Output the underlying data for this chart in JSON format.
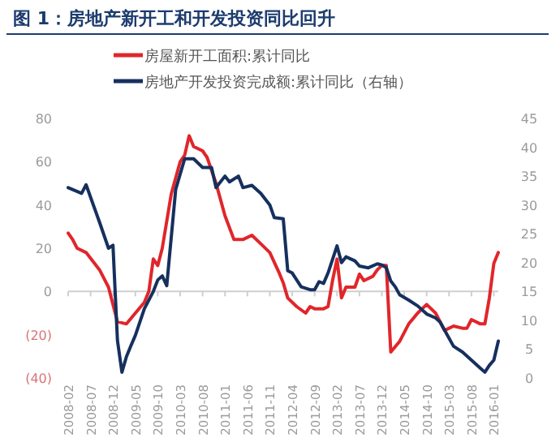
{
  "chart_data": {
    "type": "line",
    "title": "图 1：房地产新开工和开发投资同比回升",
    "legend": "top",
    "xlim": [
      "2008-02",
      "2016-02"
    ],
    "xticks": [
      "2008-02",
      "2008-07",
      "2008-12",
      "2009-05",
      "2009-10",
      "2010-03",
      "2010-08",
      "2011-01",
      "2011-06",
      "2011-11",
      "2012-04",
      "2012-09",
      "2013-02",
      "2013-07",
      "2013-12",
      "2014-05",
      "2014-10",
      "2015-03",
      "2015-08",
      "2016-01"
    ],
    "ylim": [
      -40,
      80
    ],
    "yticks": [
      80,
      60,
      40,
      20,
      0,
      {
        "value": -20,
        "label": "(20)"
      },
      {
        "value": -40,
        "label": "(40)"
      }
    ],
    "y2lim": [
      0,
      45
    ],
    "y2ticks": [
      0,
      5,
      10,
      15,
      20,
      25,
      30,
      35,
      40,
      45
    ],
    "series": [
      {
        "name": "房屋新开工面积:累计同比",
        "color": "#e0262b",
        "x": [
          "2008-02",
          "2008-03",
          "2008-04",
          "2008-06",
          "2008-09",
          "2008-11",
          "2009-01",
          "2009-03",
          "2009-05",
          "2009-07",
          "2009-08",
          "2009-09",
          "2009-10",
          "2009-11",
          "2010-01",
          "2010-03",
          "2010-04",
          "2010-05",
          "2010-06",
          "2010-08",
          "2010-09",
          "2010-11",
          "2011-01",
          "2011-03",
          "2011-05",
          "2011-07",
          "2011-09",
          "2011-11",
          "2012-01",
          "2012-02",
          "2012-03",
          "2012-05",
          "2012-07",
          "2012-08",
          "2012-09",
          "2012-11",
          "2012-12",
          "2013-01",
          "2013-02",
          "2013-03",
          "2013-04",
          "2013-06",
          "2013-07",
          "2013-08",
          "2013-10",
          "2013-11",
          "2013-12",
          "2014-01",
          "2014-02",
          "2014-04",
          "2014-06",
          "2014-08",
          "2014-10",
          "2014-11",
          "2014-12",
          "2015-02",
          "2015-04",
          "2015-06",
          "2015-07",
          "2015-08",
          "2015-10",
          "2015-11",
          "2015-12",
          "2016-01",
          "2016-02"
        ],
        "values": [
          27,
          24,
          20,
          18,
          10,
          2,
          -14,
          -15,
          -10,
          -5,
          0,
          15,
          12,
          20,
          45,
          60,
          63,
          72,
          67,
          65,
          62,
          50,
          35,
          24,
          24,
          26,
          22,
          18,
          9,
          4,
          -3,
          -7,
          -10,
          -7,
          -8,
          -8,
          -7,
          5,
          15,
          -3,
          2,
          2,
          8,
          5,
          7,
          10,
          12,
          12,
          -28,
          -23,
          -15,
          -10,
          -6,
          -8,
          -10,
          -18,
          -16,
          -17,
          -17,
          -13,
          -15,
          -15,
          -3,
          13,
          18
        ]
      },
      {
        "name": "房地产开发投资完成额:累计同比（右轴）",
        "color": "#16305e",
        "axis": "y2",
        "x": [
          "2008-02",
          "2008-05",
          "2008-06",
          "2008-09",
          "2008-11",
          "2008-12",
          "2009-01",
          "2009-02",
          "2009-03",
          "2009-04",
          "2009-05",
          "2009-07",
          "2009-09",
          "2009-10",
          "2009-11",
          "2009-12",
          "2010-02",
          "2010-04",
          "2010-06",
          "2010-08",
          "2010-10",
          "2010-11",
          "2011-01",
          "2011-02",
          "2011-04",
          "2011-05",
          "2011-07",
          "2011-09",
          "2011-11",
          "2011-12",
          "2012-02",
          "2012-03",
          "2012-04",
          "2012-06",
          "2012-08",
          "2012-09",
          "2012-10",
          "2012-11",
          "2012-12",
          "2013-02",
          "2013-03",
          "2013-04",
          "2013-06",
          "2013-07",
          "2013-09",
          "2013-11",
          "2013-12",
          "2014-01",
          "2014-02",
          "2014-03",
          "2014-04",
          "2014-06",
          "2014-08",
          "2014-10",
          "2014-12",
          "2015-01",
          "2015-02",
          "2015-04",
          "2015-06",
          "2015-08",
          "2015-10",
          "2015-11",
          "2015-12",
          "2016-01",
          "2016-02"
        ],
        "values": [
          33,
          32,
          33.5,
          27,
          22.5,
          23,
          6.5,
          1,
          3.7,
          5.6,
          7.4,
          12,
          15,
          17,
          17.7,
          16,
          32.7,
          38,
          38,
          36.5,
          36.5,
          33,
          35,
          34,
          35,
          33,
          33.4,
          32,
          30,
          27.8,
          27.6,
          18.6,
          18.2,
          15.8,
          15.3,
          15.3,
          16.7,
          16.4,
          18.2,
          22.9,
          20,
          21,
          20.3,
          19.4,
          19.1,
          19.8,
          19.6,
          19.1,
          16.8,
          15.8,
          14.4,
          13.5,
          12.5,
          11.1,
          10.4,
          9.7,
          8.3,
          5.5,
          4.5,
          3.1,
          1.7,
          1,
          2.2,
          3.1,
          6.4
        ]
      }
    ]
  }
}
